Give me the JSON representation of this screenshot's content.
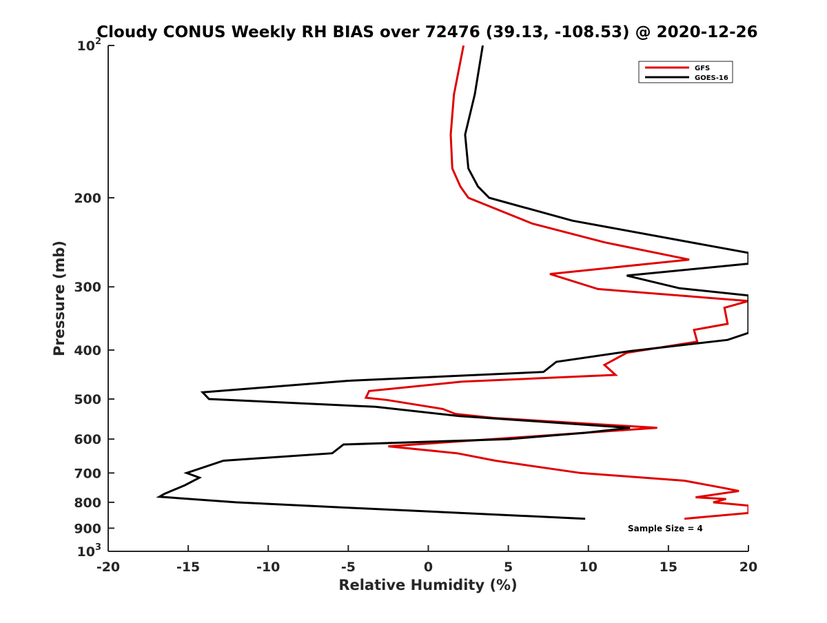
{
  "chart_data": {
    "type": "line",
    "title": "Cloudy CONUS Weekly RH BIAS over 72476 (39.13, -108.53) @ 2020-12-26",
    "xlabel": "Relative Humidity (%)",
    "ylabel": "Pressure (mb)",
    "xlim": [
      -20,
      20
    ],
    "ylim": [
      100,
      1000
    ],
    "y_scale": "log",
    "y_reversed": true,
    "x_ticks": [
      {
        "value": -20,
        "label": "-20"
      },
      {
        "value": -15,
        "label": "-15"
      },
      {
        "value": -10,
        "label": "-10"
      },
      {
        "value": -5,
        "label": "-5"
      },
      {
        "value": 0,
        "label": "0"
      },
      {
        "value": 5,
        "label": "5"
      },
      {
        "value": 10,
        "label": "10"
      },
      {
        "value": 15,
        "label": "15"
      },
      {
        "value": 20,
        "label": "20"
      }
    ],
    "y_ticks": [
      {
        "value": 100,
        "label": "10",
        "sup": "2"
      },
      {
        "value": 200,
        "label": "200"
      },
      {
        "value": 300,
        "label": "300"
      },
      {
        "value": 400,
        "label": "400"
      },
      {
        "value": 500,
        "label": "500"
      },
      {
        "value": 600,
        "label": "600"
      },
      {
        "value": 700,
        "label": "700"
      },
      {
        "value": 800,
        "label": "800"
      },
      {
        "value": 900,
        "label": "900"
      },
      {
        "value": 1000,
        "label": "10",
        "sup": "3"
      }
    ],
    "grid": false,
    "legend_position": "top-right",
    "annotation": "Sample Size = 4",
    "series": [
      {
        "name": "GFS",
        "color": "#e00000",
        "points": [
          [
            2.2,
            100
          ],
          [
            1.6,
            125
          ],
          [
            1.4,
            150
          ],
          [
            1.5,
            175
          ],
          [
            2.0,
            190
          ],
          [
            2.5,
            200
          ],
          [
            6.5,
            225
          ],
          [
            11.0,
            245
          ],
          [
            16.3,
            265
          ],
          [
            7.6,
            283
          ],
          [
            10.6,
            303
          ],
          [
            20.0,
            320
          ],
          [
            18.5,
            330
          ],
          [
            18.7,
            355
          ],
          [
            16.6,
            365
          ],
          [
            16.8,
            385
          ],
          [
            12.4,
            405
          ],
          [
            11.0,
            428
          ],
          [
            11.7,
            448
          ],
          [
            2.1,
            462
          ],
          [
            -3.7,
            482
          ],
          [
            -3.9,
            497
          ],
          [
            -2.6,
            502
          ],
          [
            0.9,
            523
          ],
          [
            1.7,
            535
          ],
          [
            4.1,
            545
          ],
          [
            14.3,
            570
          ],
          [
            -2.5,
            620
          ],
          [
            1.8,
            640
          ],
          [
            4.2,
            662
          ],
          [
            9.5,
            700
          ],
          [
            16.0,
            725
          ],
          [
            18.5,
            750
          ],
          [
            19.4,
            760
          ],
          [
            16.7,
            782
          ],
          [
            18.6,
            788
          ],
          [
            17.8,
            800
          ],
          [
            20.0,
            812
          ],
          [
            20.0,
            840
          ],
          [
            16.0,
            862
          ]
        ]
      },
      {
        "name": "GOES-16",
        "color": "#000000",
        "points": [
          [
            3.4,
            100
          ],
          [
            2.9,
            125
          ],
          [
            2.3,
            150
          ],
          [
            2.5,
            175
          ],
          [
            3.1,
            190
          ],
          [
            3.8,
            200
          ],
          [
            9.0,
            222
          ],
          [
            20.0,
            257
          ],
          [
            20.0,
            270
          ],
          [
            12.4,
            285
          ],
          [
            15.7,
            302
          ],
          [
            20.0,
            312
          ],
          [
            20.0,
            370
          ],
          [
            18.7,
            382
          ],
          [
            12.6,
            402
          ],
          [
            8.0,
            422
          ],
          [
            7.2,
            442
          ],
          [
            -5.0,
            460
          ],
          [
            -14.1,
            485
          ],
          [
            -13.7,
            500
          ],
          [
            -3.3,
            518
          ],
          [
            1.9,
            540
          ],
          [
            12.6,
            570
          ],
          [
            9.8,
            583
          ],
          [
            5.0,
            600
          ],
          [
            -5.3,
            615
          ],
          [
            -6.0,
            640
          ],
          [
            -12.8,
            662
          ],
          [
            -15.1,
            700
          ],
          [
            -14.3,
            715
          ],
          [
            -15.2,
            740
          ],
          [
            -16.5,
            770
          ],
          [
            -16.8,
            780
          ],
          [
            -12.0,
            800
          ],
          [
            -5.0,
            820
          ],
          [
            9.8,
            862
          ]
        ]
      }
    ]
  }
}
